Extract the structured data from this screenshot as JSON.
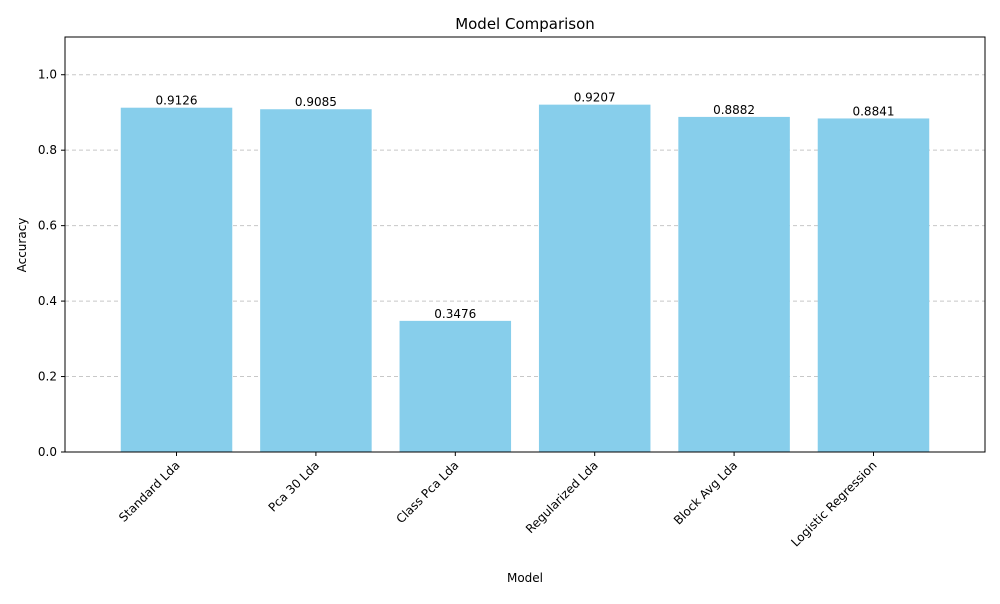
{
  "chart_data": {
    "type": "bar",
    "title": "Model Comparison",
    "xlabel": "Model",
    "ylabel": "Accuracy",
    "categories": [
      "Standard Lda",
      "Pca 30 Lda",
      "Class Pca Lda",
      "Regularized Lda",
      "Block Avg Lda",
      "Logistic Regression"
    ],
    "values": [
      0.9126,
      0.9085,
      0.3476,
      0.9207,
      0.8882,
      0.8841
    ],
    "value_labels": [
      "0.9126",
      "0.9085",
      "0.3476",
      "0.9207",
      "0.8882",
      "0.8841"
    ],
    "ylim": [
      0,
      1.1
    ],
    "yticks": [
      0.0,
      0.2,
      0.4,
      0.6,
      0.8,
      1.0
    ],
    "ytick_labels": [
      "0.0",
      "0.2",
      "0.4",
      "0.6",
      "0.8",
      "1.0"
    ],
    "grid": "y-dashed",
    "bar_color": "#87ceeb",
    "grid_color": "#c8c8c8"
  }
}
